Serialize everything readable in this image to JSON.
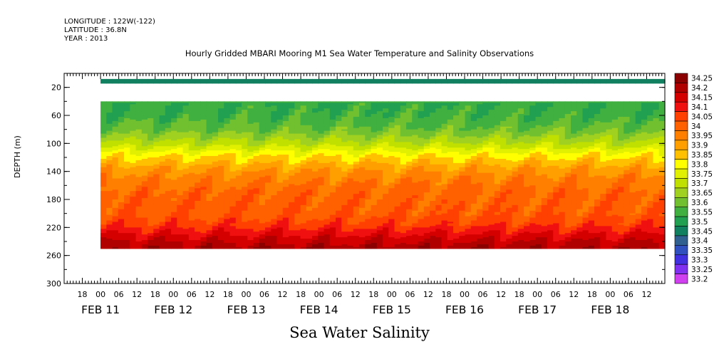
{
  "header": {
    "longitude": "LONGITUDE : 122W(-122)",
    "latitude": "LATITUDE : 36.8N",
    "year": "YEAR : 2013"
  },
  "caption": "Sea Water Salinity",
  "chart_data": {
    "type": "heatmap",
    "title": "Hourly Gridded MBARI Mooring M1 Sea Water Temperature and Salinity Observations",
    "xlabel": "",
    "ylabel": "DEPTH (m)",
    "x_hour_ticks": [
      "18",
      "00",
      "06",
      "12",
      "18",
      "00",
      "06",
      "12",
      "18",
      "00",
      "06",
      "12",
      "18",
      "00",
      "06",
      "12",
      "18",
      "00",
      "06",
      "12",
      "18",
      "00",
      "06",
      "12",
      "18",
      "00",
      "06",
      "12",
      "18",
      "00",
      "06",
      "12"
    ],
    "x_date_labels": [
      "FEB 11",
      "FEB 12",
      "FEB 13",
      "FEB 14",
      "FEB 15",
      "FEB 16",
      "FEB 17",
      "FEB 18"
    ],
    "xlim": [
      "2013-02-10T12:00",
      "2013-02-18T18:00"
    ],
    "data_x_range": [
      "2013-02-11T00:00",
      "2013-02-18T18:00"
    ],
    "ylim": [
      0,
      300
    ],
    "y_inverted": true,
    "y_ticks": [
      20,
      60,
      100,
      140,
      180,
      220,
      260,
      300
    ],
    "colorbar_levels": [
      "34.25",
      "34.2",
      "34.15",
      "34.1",
      "34.05",
      "34",
      "33.95",
      "33.9",
      "33.85",
      "33.8",
      "33.75",
      "33.7",
      "33.65",
      "33.6",
      "33.55",
      "33.5",
      "33.45",
      "33.4",
      "33.35",
      "33.3",
      "33.25",
      "33.2"
    ],
    "colorbar_colors": [
      "#8b0000",
      "#b00000",
      "#d40000",
      "#f01010",
      "#ff4000",
      "#ff6000",
      "#ff8000",
      "#ffa000",
      "#ffc000",
      "#ffff00",
      "#e0f000",
      "#c0e000",
      "#a0d020",
      "#70c030",
      "#40b040",
      "#20a050",
      "#108060",
      "#306090",
      "#3050c0",
      "#4030e0",
      "#8030f0",
      "#d040f0"
    ],
    "depth_profile": [
      {
        "depth": 10,
        "salinity": 33.45
      },
      {
        "depth": 40,
        "salinity": 33.55
      },
      {
        "depth": 60,
        "salinity": 33.57
      },
      {
        "depth": 80,
        "salinity": 33.62
      },
      {
        "depth": 100,
        "salinity": 33.72
      },
      {
        "depth": 115,
        "salinity": 33.83
      },
      {
        "depth": 125,
        "salinity": 33.88
      },
      {
        "depth": 135,
        "salinity": 33.93
      },
      {
        "depth": 150,
        "salinity": 33.98
      },
      {
        "depth": 170,
        "salinity": 34.02
      },
      {
        "depth": 200,
        "salinity": 34.04
      },
      {
        "depth": 215,
        "salinity": 34.08
      },
      {
        "depth": 225,
        "salinity": 34.13
      },
      {
        "depth": 235,
        "salinity": 34.18
      },
      {
        "depth": 245,
        "salinity": 34.22
      },
      {
        "depth": 250,
        "salinity": 34.24
      }
    ],
    "gaps": [
      {
        "depth_from": 12,
        "depth_to": 40,
        "note": "no data"
      }
    ],
    "grid": false,
    "legend": "right colorbar"
  }
}
